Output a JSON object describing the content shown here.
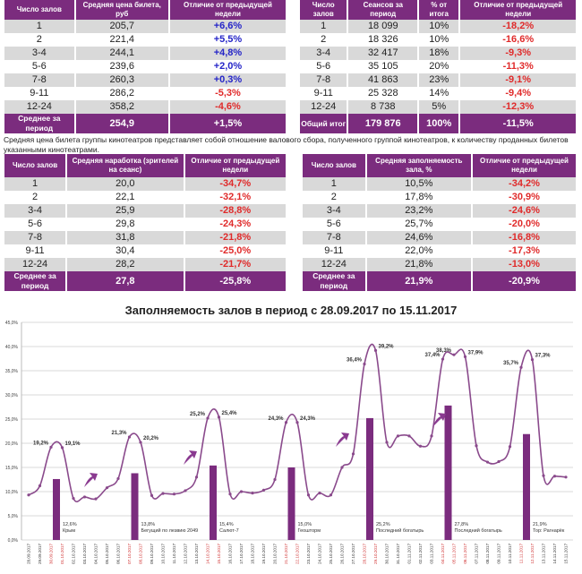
{
  "table_price": {
    "headers": [
      "Число залов",
      "Средняя цена билета, руб",
      "Отличие от предыдущей недели"
    ],
    "rows": [
      [
        "1",
        "205,7",
        "+6,6%"
      ],
      [
        "2",
        "221,4",
        "+5,5%"
      ],
      [
        "3-4",
        "244,1",
        "+4,8%"
      ],
      [
        "5-6",
        "239,6",
        "+2,0%"
      ],
      [
        "7-8",
        "260,3",
        "+0,3%"
      ],
      [
        "9-11",
        "286,2",
        "-5,3%"
      ],
      [
        "12-24",
        "358,2",
        "-4,6%"
      ]
    ],
    "footer": [
      "Среднее за период",
      "254,9",
      "+1,5%"
    ]
  },
  "table_sessions": {
    "headers": [
      "Число залов",
      "Сеансов за период",
      "% от итога",
      "Отличие от предыдущей недели"
    ],
    "rows": [
      [
        "1",
        "18 099",
        "10%",
        "-18,2%"
      ],
      [
        "2",
        "18 326",
        "10%",
        "-16,6%"
      ],
      [
        "3-4",
        "32 417",
        "18%",
        "-9,3%"
      ],
      [
        "5-6",
        "35 105",
        "20%",
        "-11,3%"
      ],
      [
        "7-8",
        "41 863",
        "23%",
        "-9,1%"
      ],
      [
        "9-11",
        "25 328",
        "14%",
        "-9,4%"
      ],
      [
        "12-24",
        "8 738",
        "5%",
        "-12,3%"
      ]
    ],
    "footer": [
      "Общий итог",
      "179 876",
      "100%",
      "-11,5%"
    ]
  },
  "note": "Средняя цена билета группы кинотеатров представляет собой отношение валового сбора, полученного группой кинотеатров, к количеству проданных билетов указанными кинотеатрами.",
  "table_viewers": {
    "headers": [
      "Число залов",
      "Средняя наработка (зрителей на сеанс)",
      "Отличие от предыдущей недели"
    ],
    "rows": [
      [
        "1",
        "20,0",
        "-34,7%"
      ],
      [
        "2",
        "22,1",
        "-32,1%"
      ],
      [
        "3-4",
        "25,9",
        "-28,8%"
      ],
      [
        "5-6",
        "29,8",
        "-24,3%"
      ],
      [
        "7-8",
        "31,8",
        "-21,8%"
      ],
      [
        "9-11",
        "30,4",
        "-25,0%"
      ],
      [
        "12-24",
        "28,2",
        "-21,7%"
      ]
    ],
    "footer": [
      "Среднее за период",
      "27,8",
      "-25,8%"
    ]
  },
  "table_occupancy": {
    "headers": [
      "Число залов",
      "Средняя заполняемость зала, %",
      "Отличие от предыдущей недели"
    ],
    "rows": [
      [
        "1",
        "10,5%",
        "-34,2%"
      ],
      [
        "2",
        "17,8%",
        "-30,9%"
      ],
      [
        "3-4",
        "23,2%",
        "-24,6%"
      ],
      [
        "5-6",
        "25,7%",
        "-20,0%"
      ],
      [
        "7-8",
        "24,6%",
        "-16,8%"
      ],
      [
        "9-11",
        "22,0%",
        "-17,3%"
      ],
      [
        "12-24",
        "21,8%",
        "-13,0%"
      ]
    ],
    "footer": [
      "Среднее за период",
      "21,9%",
      "-20,9%"
    ]
  },
  "colors": {
    "header": "#7b2c7e",
    "positive": "#2525c8",
    "negative": "#e02a2a",
    "line": "#8a4a8c",
    "bar": "#7b2c7e",
    "weekend": "#d03030"
  },
  "chart_data": {
    "type": "line",
    "title": "Заполняемость залов в период с 28.09.2017 по 15.11.2017",
    "ylim": [
      0,
      45
    ],
    "yticks": [
      "0,0%",
      "5,0%",
      "10,0%",
      "15,0%",
      "20,0%",
      "25,0%",
      "30,0%",
      "35,0%",
      "40,0%",
      "45,0%"
    ],
    "grid": true,
    "x": [
      "28.09.2017",
      "29.09.2017",
      "30.09.2017",
      "01.10.2017",
      "02.10.2017",
      "03.10.2017",
      "04.10.2017",
      "05.10.2017",
      "06.10.2017",
      "07.10.2017",
      "08.10.2017",
      "09.10.2017",
      "10.10.2017",
      "11.10.2017",
      "12.10.2017",
      "13.10.2017",
      "14.10.2017",
      "15.10.2017",
      "16.10.2017",
      "17.10.2017",
      "18.10.2017",
      "19.10.2017",
      "20.10.2017",
      "21.10.2017",
      "22.10.2017",
      "23.10.2017",
      "24.10.2017",
      "25.10.2017",
      "26.10.2017",
      "27.10.2017",
      "28.10.2017",
      "29.10.2017",
      "30.10.2017",
      "31.10.2017",
      "01.11.2017",
      "02.11.2017",
      "03.11.2017",
      "04.11.2017",
      "05.11.2017",
      "06.11.2017",
      "07.11.2017",
      "08.11.2017",
      "09.11.2017",
      "10.11.2017",
      "11.11.2017",
      "12.11.2017",
      "13.11.2017",
      "14.11.2017",
      "15.11.2017"
    ],
    "weekend_dates": [
      "30.09.2017",
      "01.10.2017",
      "07.10.2017",
      "08.10.2017",
      "14.10.2017",
      "15.10.2017",
      "21.10.2017",
      "22.10.2017",
      "28.10.2017",
      "29.10.2017",
      "04.11.2017",
      "05.11.2017",
      "06.11.2017",
      "11.11.2017",
      "12.11.2017"
    ],
    "values": [
      9.3,
      11.2,
      19.2,
      19.1,
      8.6,
      8.9,
      8.5,
      10.8,
      12.7,
      21.3,
      20.2,
      9.2,
      9.6,
      9.5,
      10.2,
      13.0,
      25.2,
      25.4,
      9.5,
      10.0,
      9.7,
      10.3,
      12.5,
      24.3,
      24.3,
      9.3,
      9.7,
      9.3,
      15.0,
      17.8,
      36.4,
      39.2,
      20.2,
      21.5,
      21.5,
      19.4,
      21.5,
      37.4,
      38.3,
      37.9,
      19.5,
      16.1,
      16.2,
      19.3,
      35.7,
      37.3,
      13.3,
      13.2,
      13.0
    ],
    "point_labels": [
      {
        "date": "30.09.2017",
        "text": "19,2%"
      },
      {
        "date": "01.10.2017",
        "text": "19,1%"
      },
      {
        "date": "07.10.2017",
        "text": "21,3%"
      },
      {
        "date": "08.10.2017",
        "text": "20,2%"
      },
      {
        "date": "14.10.2017",
        "text": "25,2%"
      },
      {
        "date": "15.10.2017",
        "text": "25,4%"
      },
      {
        "date": "21.10.2017",
        "text": "24,3%"
      },
      {
        "date": "22.10.2017",
        "text": "24,3%"
      },
      {
        "date": "28.10.2017",
        "text": "36,4%"
      },
      {
        "date": "29.10.2017",
        "text": "39,2%"
      },
      {
        "date": "04.11.2017",
        "text": "37,4%"
      },
      {
        "date": "05.11.2017",
        "text": "38,3%"
      },
      {
        "date": "06.11.2017",
        "text": "37,9%"
      },
      {
        "date": "11.11.2017",
        "text": "35,7%"
      },
      {
        "date": "12.11.2017",
        "text": "37,3%"
      }
    ],
    "bars": [
      {
        "date": "30.09.2017",
        "value": 12.6,
        "label": "12,6%",
        "film": "Крым"
      },
      {
        "date": "07.10.2017",
        "value": 13.8,
        "label": "13,8%",
        "film": "Бегущий по лезвию 2049"
      },
      {
        "date": "14.10.2017",
        "value": 15.4,
        "label": "15,4%",
        "film": "Салют-7"
      },
      {
        "date": "21.10.2017",
        "value": 15.0,
        "label": "15,0%",
        "film": "Геошторм"
      },
      {
        "date": "28.10.2017",
        "value": 25.2,
        "label": "25,2%",
        "film": "Последний богатырь"
      },
      {
        "date": "04.11.2017",
        "value": 27.8,
        "label": "27,8%",
        "film": "Последний богатырь"
      },
      {
        "date": "11.11.2017",
        "value": 21.9,
        "label": "21,9%",
        "film": "Тор: Рагнарёк"
      }
    ],
    "arrow_icon": "curved-up-arrow-icon"
  }
}
